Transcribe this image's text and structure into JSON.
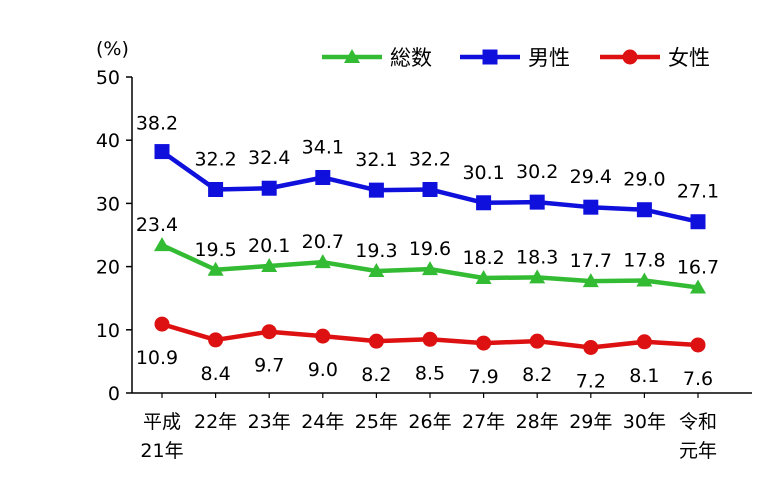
{
  "chart_data": {
    "type": "line",
    "ylabel": "(%)",
    "ylim": [
      0,
      50
    ],
    "yticks": [
      "0",
      "10",
      "20",
      "30",
      "40",
      "50"
    ],
    "categories": [
      [
        "平成",
        "21年"
      ],
      [
        "22年"
      ],
      [
        "23年"
      ],
      [
        "24年"
      ],
      [
        "25年"
      ],
      [
        "26年"
      ],
      [
        "27年"
      ],
      [
        "28年"
      ],
      [
        "29年"
      ],
      [
        "30年"
      ],
      [
        "令和",
        "元年"
      ]
    ],
    "legend_position": "top-right",
    "grid": false,
    "series": [
      {
        "name": "総数",
        "color": "#33bb33",
        "marker": "triangle",
        "values": [
          23.4,
          19.5,
          20.1,
          20.7,
          19.3,
          19.6,
          18.2,
          18.3,
          17.7,
          17.8,
          16.7
        ],
        "labels": [
          "23.4",
          "19.5",
          "20.1",
          "20.7",
          "19.3",
          "19.6",
          "18.2",
          "18.3",
          "17.7",
          "17.8",
          "16.7"
        ]
      },
      {
        "name": "男性",
        "color": "#1010dd",
        "marker": "square",
        "values": [
          38.2,
          32.2,
          32.4,
          34.1,
          32.1,
          32.2,
          30.1,
          30.2,
          29.4,
          29.0,
          27.1
        ],
        "labels": [
          "38.2",
          "32.2",
          "32.4",
          "34.1",
          "32.1",
          "32.2",
          "30.1",
          "30.2",
          "29.4",
          "29.0",
          "27.1"
        ]
      },
      {
        "name": "女性",
        "color": "#dd1111",
        "marker": "circle",
        "values": [
          10.9,
          8.4,
          9.7,
          9.0,
          8.2,
          8.5,
          7.9,
          8.2,
          7.2,
          8.1,
          7.6
        ],
        "labels": [
          "10.9",
          "8.4",
          "9.7",
          "9.0",
          "8.2",
          "8.5",
          "7.9",
          "8.2",
          "7.2",
          "8.1",
          "7.6"
        ]
      }
    ]
  }
}
